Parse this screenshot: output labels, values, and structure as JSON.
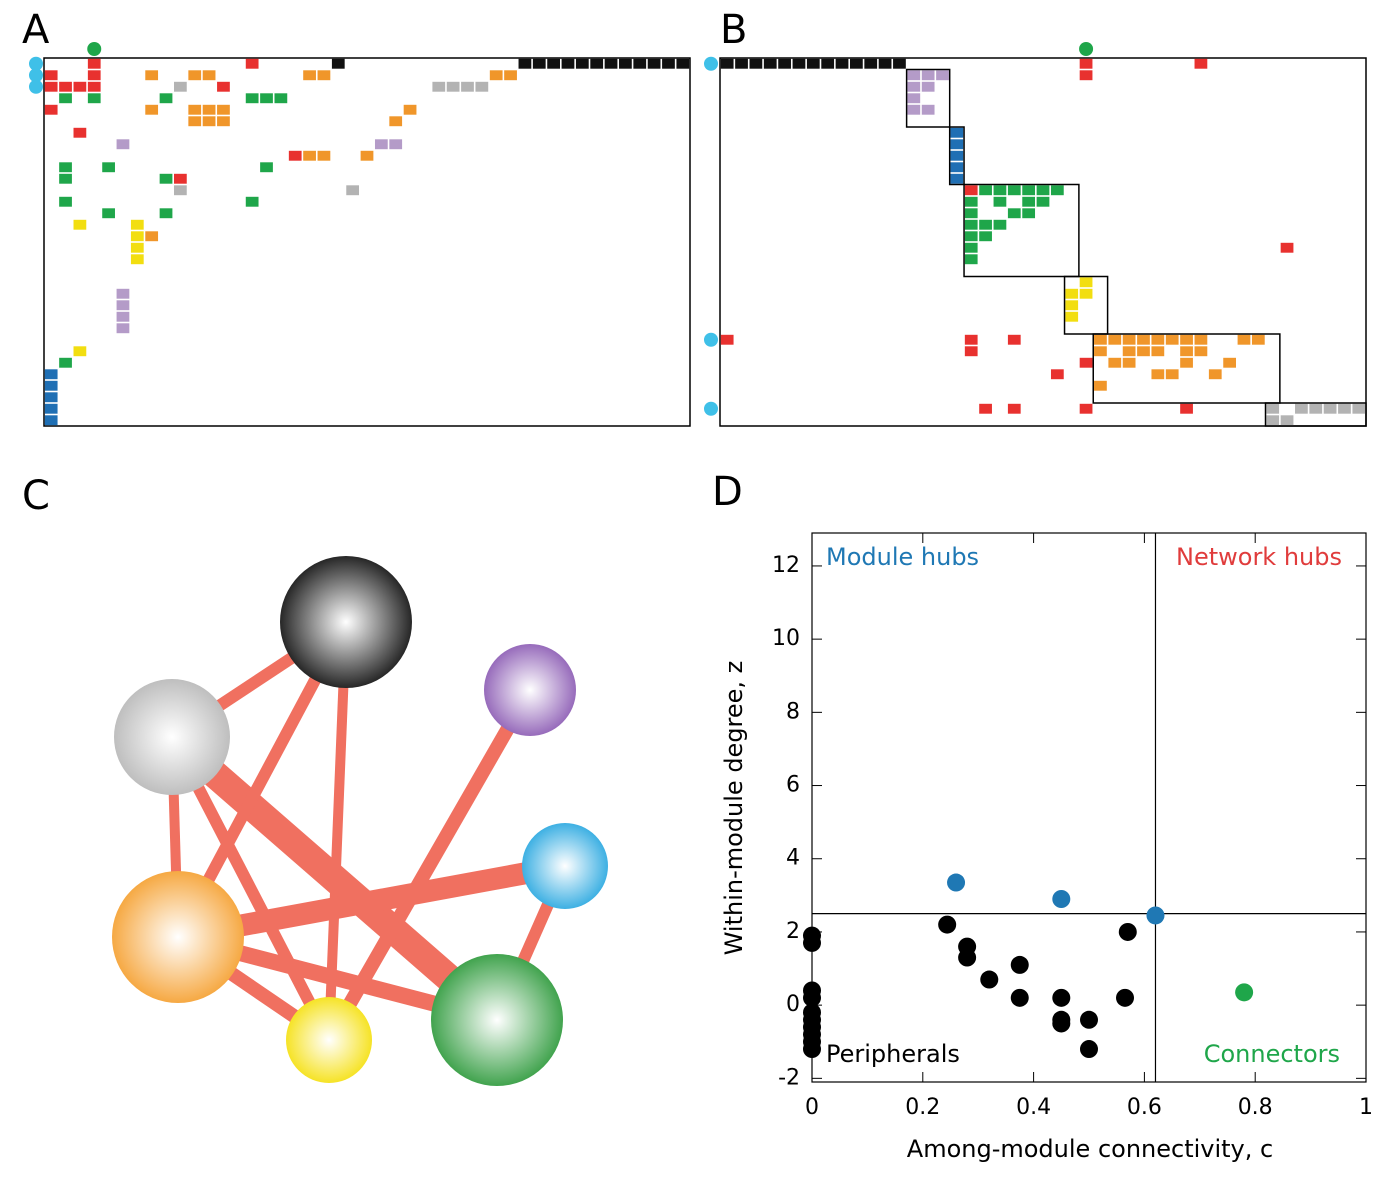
{
  "panel_labels": [
    "A",
    "B",
    "C",
    "D"
  ],
  "cell_colors": {
    "K": "#111111",
    "L": "#b49bc8",
    "B": "#1f6fb4",
    "G": "#1fa64a",
    "Y": "#f2de10",
    "O": "#f0962a",
    "S": "#b3b3b3",
    "R": "#e8312f"
  },
  "matrix_a": {
    "rows": 32,
    "cols": 45,
    "runs": [
      [
        0,
        3,
        3,
        "R"
      ],
      [
        0,
        14,
        14,
        "R"
      ],
      [
        0,
        20,
        20,
        "K"
      ],
      [
        0,
        33,
        44,
        "K"
      ],
      [
        1,
        0,
        0,
        "R"
      ],
      [
        1,
        3,
        3,
        "R"
      ],
      [
        1,
        7,
        7,
        "O"
      ],
      [
        1,
        10,
        11,
        "O"
      ],
      [
        1,
        18,
        19,
        "O"
      ],
      [
        1,
        31,
        32,
        "O"
      ],
      [
        2,
        0,
        3,
        "R"
      ],
      [
        2,
        9,
        9,
        "S"
      ],
      [
        2,
        12,
        12,
        "R"
      ],
      [
        2,
        27,
        30,
        "S"
      ],
      [
        3,
        1,
        1,
        "G"
      ],
      [
        3,
        3,
        3,
        "G"
      ],
      [
        3,
        8,
        8,
        "G"
      ],
      [
        3,
        14,
        16,
        "G"
      ],
      [
        4,
        0,
        0,
        "R"
      ],
      [
        4,
        7,
        7,
        "O"
      ],
      [
        4,
        10,
        12,
        "O"
      ],
      [
        4,
        25,
        25,
        "O"
      ],
      [
        5,
        10,
        12,
        "O"
      ],
      [
        5,
        24,
        24,
        "O"
      ],
      [
        6,
        2,
        2,
        "R"
      ],
      [
        7,
        5,
        5,
        "L"
      ],
      [
        7,
        23,
        24,
        "L"
      ],
      [
        8,
        17,
        17,
        "R"
      ],
      [
        8,
        18,
        19,
        "O"
      ],
      [
        8,
        22,
        22,
        "O"
      ],
      [
        9,
        1,
        1,
        "G"
      ],
      [
        9,
        4,
        4,
        "G"
      ],
      [
        9,
        15,
        15,
        "G"
      ],
      [
        10,
        1,
        1,
        "G"
      ],
      [
        10,
        8,
        8,
        "G"
      ],
      [
        10,
        9,
        9,
        "R"
      ],
      [
        11,
        9,
        9,
        "S"
      ],
      [
        11,
        21,
        21,
        "S"
      ],
      [
        12,
        1,
        1,
        "G"
      ],
      [
        12,
        14,
        14,
        "G"
      ],
      [
        13,
        4,
        4,
        "G"
      ],
      [
        13,
        8,
        8,
        "G"
      ],
      [
        14,
        2,
        2,
        "Y"
      ],
      [
        14,
        6,
        6,
        "Y"
      ],
      [
        15,
        7,
        7,
        "O"
      ],
      [
        15,
        6,
        6,
        "Y"
      ],
      [
        16,
        6,
        6,
        "Y"
      ],
      [
        17,
        6,
        6,
        "Y"
      ],
      [
        20,
        5,
        5,
        "L"
      ],
      [
        21,
        5,
        5,
        "L"
      ],
      [
        22,
        5,
        5,
        "L"
      ],
      [
        23,
        5,
        5,
        "L"
      ],
      [
        25,
        2,
        2,
        "Y"
      ],
      [
        26,
        1,
        1,
        "G"
      ],
      [
        27,
        0,
        0,
        "B"
      ],
      [
        28,
        0,
        0,
        "B"
      ],
      [
        29,
        0,
        0,
        "B"
      ],
      [
        30,
        0,
        0,
        "B"
      ],
      [
        31,
        0,
        0,
        "B"
      ]
    ],
    "modules": [],
    "row_dots": [
      0,
      1,
      2
    ],
    "col_dots": [
      3
    ]
  },
  "matrix_b": {
    "rows": 32,
    "cols": 45,
    "runs": [
      [
        0,
        0,
        12,
        "K"
      ],
      [
        0,
        25,
        25,
        "R"
      ],
      [
        0,
        33,
        33,
        "R"
      ],
      [
        1,
        13,
        15,
        "L"
      ],
      [
        1,
        25,
        25,
        "R"
      ],
      [
        2,
        13,
        14,
        "L"
      ],
      [
        3,
        13,
        13,
        "L"
      ],
      [
        4,
        13,
        14,
        "L"
      ],
      [
        6,
        16,
        16,
        "B"
      ],
      [
        7,
        16,
        16,
        "B"
      ],
      [
        8,
        16,
        16,
        "B"
      ],
      [
        9,
        16,
        16,
        "B"
      ],
      [
        10,
        16,
        16,
        "B"
      ],
      [
        11,
        17,
        17,
        "R"
      ],
      [
        11,
        18,
        23,
        "G"
      ],
      [
        12,
        17,
        17,
        "G"
      ],
      [
        12,
        19,
        19,
        "G"
      ],
      [
        12,
        21,
        22,
        "G"
      ],
      [
        13,
        17,
        17,
        "G"
      ],
      [
        13,
        20,
        21,
        "G"
      ],
      [
        14,
        17,
        19,
        "G"
      ],
      [
        15,
        17,
        18,
        "G"
      ],
      [
        16,
        17,
        17,
        "G"
      ],
      [
        16,
        39,
        39,
        "R"
      ],
      [
        17,
        17,
        17,
        "G"
      ],
      [
        19,
        25,
        25,
        "Y"
      ],
      [
        20,
        24,
        25,
        "Y"
      ],
      [
        21,
        24,
        24,
        "Y"
      ],
      [
        22,
        24,
        24,
        "Y"
      ],
      [
        24,
        0,
        0,
        "R"
      ],
      [
        24,
        17,
        17,
        "R"
      ],
      [
        24,
        20,
        20,
        "R"
      ],
      [
        24,
        26,
        33,
        "O"
      ],
      [
        24,
        36,
        37,
        "O"
      ],
      [
        25,
        17,
        17,
        "R"
      ],
      [
        25,
        26,
        26,
        "O"
      ],
      [
        25,
        28,
        30,
        "O"
      ],
      [
        25,
        32,
        33,
        "O"
      ],
      [
        26,
        25,
        25,
        "R"
      ],
      [
        26,
        27,
        28,
        "O"
      ],
      [
        26,
        32,
        32,
        "O"
      ],
      [
        26,
        35,
        35,
        "O"
      ],
      [
        27,
        23,
        23,
        "R"
      ],
      [
        27,
        30,
        31,
        "O"
      ],
      [
        27,
        34,
        34,
        "O"
      ],
      [
        28,
        26,
        26,
        "O"
      ],
      [
        30,
        18,
        18,
        "R"
      ],
      [
        30,
        20,
        20,
        "R"
      ],
      [
        30,
        25,
        25,
        "R"
      ],
      [
        30,
        32,
        32,
        "R"
      ],
      [
        30,
        38,
        38,
        "S"
      ],
      [
        30,
        40,
        44,
        "S"
      ],
      [
        31,
        38,
        39,
        "S"
      ]
    ],
    "modules": [
      [
        1,
        5,
        13,
        15
      ],
      [
        6,
        10,
        16,
        16
      ],
      [
        11,
        18,
        17,
        24
      ],
      [
        19,
        23,
        24,
        26
      ],
      [
        24,
        29,
        26,
        38
      ],
      [
        30,
        31,
        38,
        44
      ]
    ],
    "row_dots": [
      0,
      24,
      30
    ],
    "col_dots": [
      25
    ]
  },
  "network": {
    "edge_color": "#f07060",
    "nodes": [
      {
        "color": "#111111"
      },
      {
        "color": "#8c5cb4"
      },
      {
        "color": "#b8b8b8"
      },
      {
        "color": "#2aa8e0"
      },
      {
        "color": "#f5a030"
      },
      {
        "color": "#f5e010"
      },
      {
        "color": "#2e9a3c"
      }
    ],
    "edges": [
      [
        2,
        0,
        12
      ],
      [
        2,
        4,
        10
      ],
      [
        2,
        5,
        12
      ],
      [
        2,
        6,
        28
      ],
      [
        0,
        4,
        12
      ],
      [
        0,
        5,
        10
      ],
      [
        1,
        5,
        14
      ],
      [
        3,
        4,
        22
      ],
      [
        3,
        6,
        12
      ],
      [
        4,
        5,
        14
      ],
      [
        4,
        6,
        16
      ]
    ]
  },
  "chart_data": {
    "type": "scatter",
    "xlabel": "Among-module connectivity, c",
    "ylabel": "Within-module degree, z",
    "xlim": [
      0,
      1
    ],
    "ylim": [
      -2.1,
      12.9
    ],
    "xticks": [
      0,
      0.2,
      0.4,
      0.6,
      0.8,
      1
    ],
    "yticks": [
      -2,
      0,
      2,
      4,
      6,
      8,
      10,
      12
    ],
    "c_threshold": 0.62,
    "z_threshold": 2.5,
    "quadrant_labels": [
      {
        "text": "Module hubs",
        "color": "#1f78b4"
      },
      {
        "text": "Network hubs",
        "color": "#e03c3c"
      },
      {
        "text": "Peripherals",
        "color": "#000000"
      },
      {
        "text": "Connectors",
        "color": "#1fa64a"
      }
    ],
    "series": [
      {
        "color": "#000000",
        "x": [
          0,
          0,
          0,
          0,
          0,
          0,
          0,
          0,
          0,
          0,
          0.244,
          0.28,
          0.28,
          0.32,
          0.375,
          0.375,
          0.45,
          0.45,
          0.45,
          0.5,
          0.5,
          0.565,
          0.57
        ],
        "values": [
          1.9,
          1.7,
          0.4,
          0.2,
          -0.2,
          -0.4,
          -0.6,
          -0.8,
          -1.0,
          -1.2,
          2.2,
          1.6,
          1.3,
          0.7,
          1.1,
          0.2,
          0.2,
          -0.4,
          -0.5,
          -0.4,
          -1.2,
          0.2,
          2.0
        ]
      },
      {
        "color": "#1f78b4",
        "x": [
          0.26,
          0.45,
          0.62
        ],
        "values": [
          3.35,
          2.9,
          2.45
        ]
      },
      {
        "color": "#1fa64a",
        "x": [
          0.78
        ],
        "values": [
          0.35
        ]
      }
    ]
  }
}
